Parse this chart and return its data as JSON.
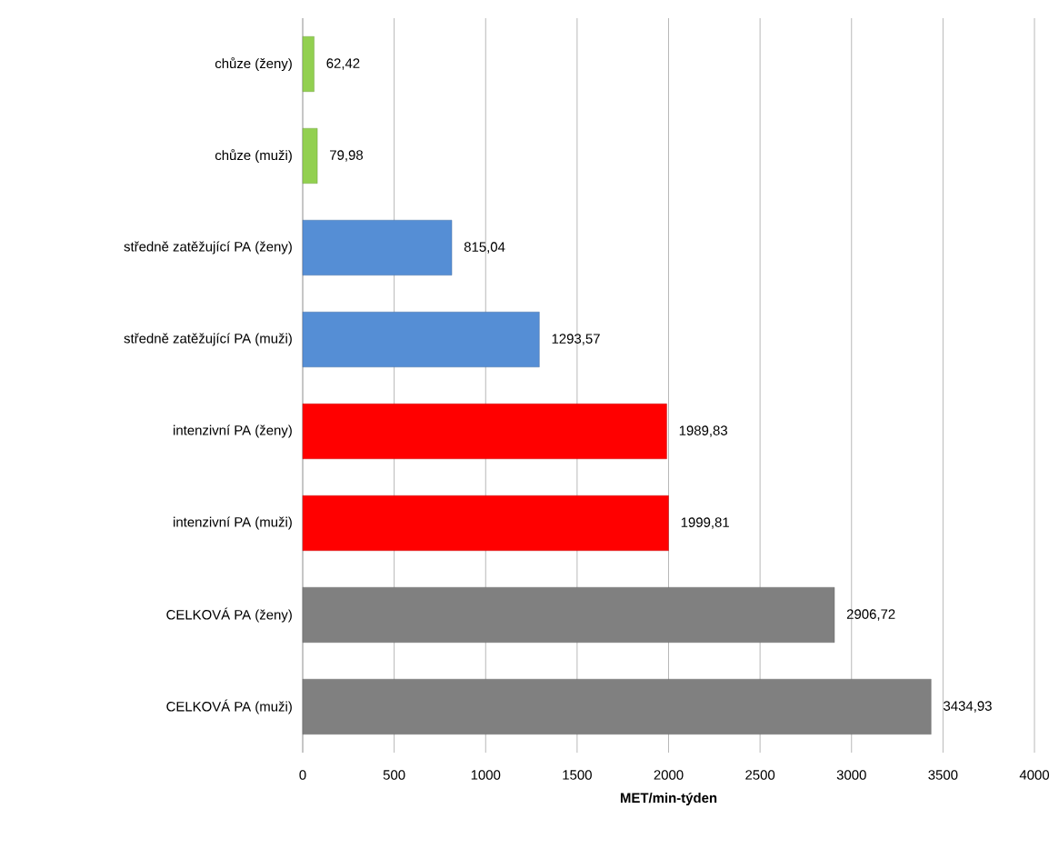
{
  "chart_data": {
    "type": "bar",
    "orientation": "horizontal",
    "xlabel": "MET/min-týden",
    "categories": [
      "chůze (ženy)",
      "chůze (muži)",
      "středně zatěžující PA (ženy)",
      "středně zatěžující PA (muži)",
      "intenzivní PA (ženy)",
      "intenzivní PA (muži)",
      "CELKOVÁ PA (ženy)",
      "CELKOVÁ PA (muži)"
    ],
    "values": [
      62.42,
      79.98,
      815.04,
      1293.57,
      1989.83,
      1999.81,
      2906.72,
      3434.93
    ],
    "value_labels": [
      "62,42",
      "79,98",
      "815,04",
      "1293,57",
      "1989,83",
      "1999,81",
      "2906,72",
      "3434,93"
    ],
    "colors": [
      "#92d050",
      "#92d050",
      "#558ed5",
      "#558ed5",
      "#ff0000",
      "#ff0000",
      "#808080",
      "#808080"
    ],
    "xlim": [
      0,
      4000
    ],
    "xticks": [
      0,
      500,
      1000,
      1500,
      2000,
      2500,
      3000,
      3500,
      4000
    ],
    "grid": "x"
  }
}
